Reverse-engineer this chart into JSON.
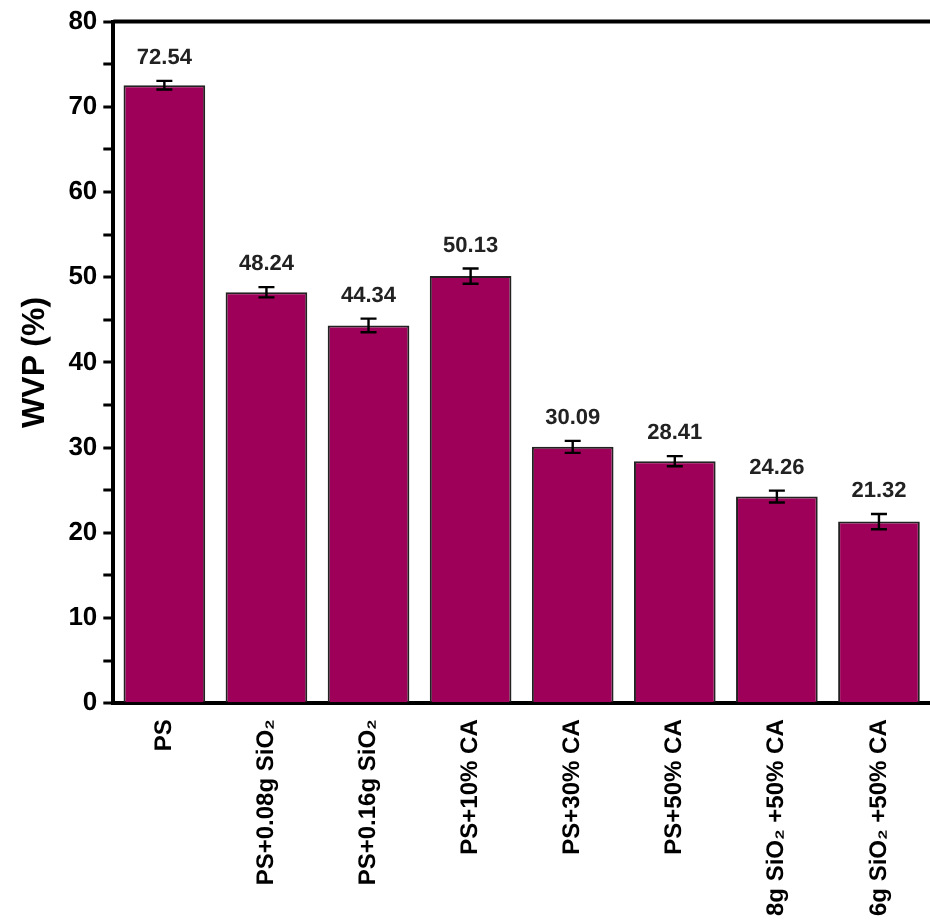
{
  "chart_data": {
    "type": "bar",
    "ylabel": "WVP (%)",
    "categories": [
      "PS",
      "PS+0.08g SiO₂",
      "PS+0.16g SiO₂",
      "PS+10% CA",
      "PS+30% CA",
      "PS+50% CA",
      "8g SiO₂ +50% CA",
      "6g SiO₂ +50% CA"
    ],
    "values": [
      72.54,
      48.24,
      44.34,
      50.13,
      30.09,
      28.41,
      24.26,
      21.32
    ],
    "errors": [
      0.5,
      0.6,
      0.8,
      0.9,
      0.7,
      0.6,
      0.7,
      0.9
    ],
    "color": "#9e0059",
    "data_labels": true,
    "grid": false,
    "legend": false,
    "ylim": [
      0,
      80
    ],
    "yticks": [
      0,
      {
        "value": 5,
        "label": null
      },
      10,
      {
        "value": 15,
        "label": null
      },
      20,
      {
        "value": 25,
        "label": null
      },
      30,
      {
        "value": 35,
        "label": null
      },
      40,
      {
        "value": 45,
        "label": null
      },
      50,
      {
        "value": 55,
        "label": null
      },
      60,
      {
        "value": 65,
        "label": null
      },
      70,
      {
        "value": 75,
        "label": null
      },
      80
    ]
  }
}
